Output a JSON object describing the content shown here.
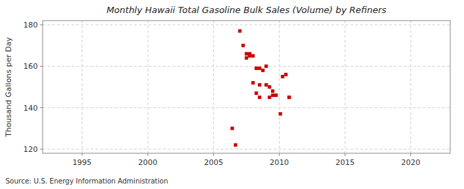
{
  "chart_data": {
    "type": "scatter",
    "title": "Monthly Hawaii Total Gasoline Bulk Sales (Volume) by Refiners",
    "ylabel": "Thousand Gallons per Day",
    "annotation": "Source: U.S. Energy Information Administration",
    "x": [
      2007.0,
      2007.25,
      2007.5,
      2007.75,
      2008.0,
      2008.25,
      2008.5,
      2008.5,
      2008.75,
      2009.0,
      2009.0,
      2009.25,
      2009.5,
      2009.5,
      2009.75,
      2010.08,
      2010.25,
      2010.5,
      2010.75,
      2010.75,
      2007.5,
      2007.75,
      2008.0,
      2008.25,
      2008.5,
      2009.25,
      2006.42,
      2006.67
    ],
    "values": [
      177,
      170,
      166,
      165,
      165,
      159,
      159,
      151,
      158,
      151,
      160,
      150,
      146,
      148,
      146,
      137,
      155,
      156,
      145,
      145,
      164,
      166,
      152,
      147,
      145,
      145,
      130,
      122
    ],
    "color": "#cc0000",
    "marker": "square",
    "xlim": [
      1992,
      2023
    ],
    "ylim": [
      118,
      182
    ],
    "xticks": [
      1995,
      2000,
      2005,
      2010,
      2015,
      2020
    ],
    "yticks": [
      120,
      140,
      160,
      180
    ],
    "grid": true
  }
}
